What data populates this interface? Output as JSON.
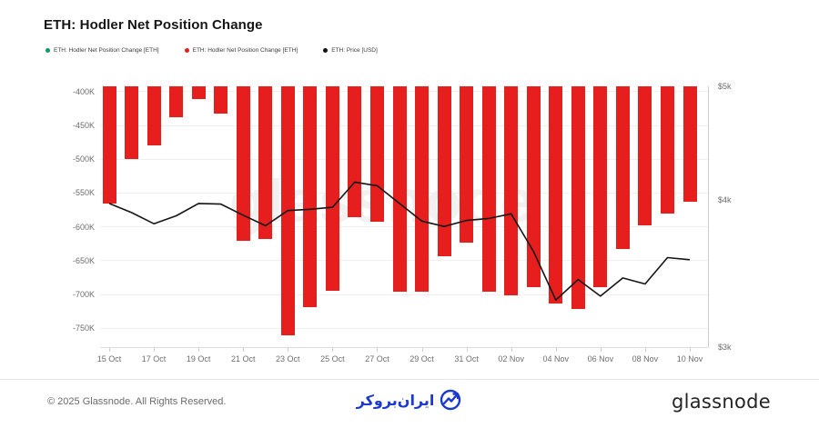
{
  "header": {
    "title": "ETH: Hodler Net Position Change"
  },
  "legend": {
    "items": [
      {
        "label": "ETH: Hodler Net Position Change [ETH]",
        "color": "#0c9b5e"
      },
      {
        "label": "ETH: Hodler Net Position Change [ETH]",
        "color": "#e61e1e"
      },
      {
        "label": "ETH: Price [USD]",
        "color": "#111111"
      }
    ]
  },
  "watermark": {
    "text": "glassnode"
  },
  "chart_data": {
    "type": "bar",
    "x": [
      "15 Oct",
      "16 Oct",
      "17 Oct",
      "18 Oct",
      "19 Oct",
      "20 Oct",
      "21 Oct",
      "22 Oct",
      "23 Oct",
      "24 Oct",
      "25 Oct",
      "26 Oct",
      "27 Oct",
      "28 Oct",
      "29 Oct",
      "30 Oct",
      "31 Oct",
      "01 Nov",
      "02 Nov",
      "03 Nov",
      "04 Nov",
      "05 Nov",
      "06 Nov",
      "07 Nov",
      "08 Nov",
      "09 Nov",
      "10 Nov"
    ],
    "x_tick_labels": [
      "15 Oct",
      "17 Oct",
      "19 Oct",
      "21 Oct",
      "23 Oct",
      "25 Oct",
      "27 Oct",
      "29 Oct",
      "31 Oct",
      "02 Nov",
      "04 Nov",
      "06 Nov",
      "08 Nov",
      "10 Nov"
    ],
    "series": [
      {
        "name": "ETH: Hodler Net Position Change [ETH]",
        "type": "bar",
        "axis": "left",
        "color": "#e61e1e",
        "values": [
          -565000,
          -500000,
          -480000,
          -438000,
          -411000,
          -432000,
          -620000,
          -618000,
          -760000,
          -719000,
          -695000,
          -585000,
          -593000,
          -696000,
          -696000,
          -643000,
          -624000,
          -696000,
          -701000,
          -689000,
          -714000,
          -721000,
          -689000,
          -633000,
          -598000,
          -580000,
          -563000
        ]
      },
      {
        "name": "ETH: Price [USD]",
        "type": "line",
        "axis": "right",
        "color": "#151515",
        "values": [
          3975,
          3905,
          3820,
          3880,
          3975,
          3970,
          3885,
          3805,
          3920,
          3930,
          3945,
          4145,
          4115,
          3975,
          3840,
          3800,
          3845,
          3860,
          3895,
          3620,
          3290,
          3425,
          3315,
          3435,
          3395,
          3575,
          3560
        ]
      }
    ],
    "left_axis": {
      "tick_values": [
        -400000,
        -450000,
        -500000,
        -550000,
        -600000,
        -650000,
        -700000,
        -750000
      ],
      "tick_labels": [
        "-400K",
        "-450K",
        "-500K",
        "-550K",
        "-600K",
        "-650K",
        "-700K",
        "-750K"
      ],
      "range_top": -392000,
      "range_bottom": -778000,
      "scale": "linear"
    },
    "right_axis": {
      "tick_values": [
        5000,
        4000,
        3000
      ],
      "tick_labels": [
        "$5k",
        "$4k",
        "$3k"
      ],
      "range_top": 5000,
      "range_bottom": 3000,
      "scale": "log"
    },
    "grid": "horizontal",
    "legend_position": "top-left",
    "title": "ETH: Hodler Net Position Change"
  },
  "footer": {
    "copyright": "© 2025 Glassnode. All Rights Reserved.",
    "center_logo_text": "ایران‌بروکر",
    "right_wordmark": "glassnode"
  }
}
